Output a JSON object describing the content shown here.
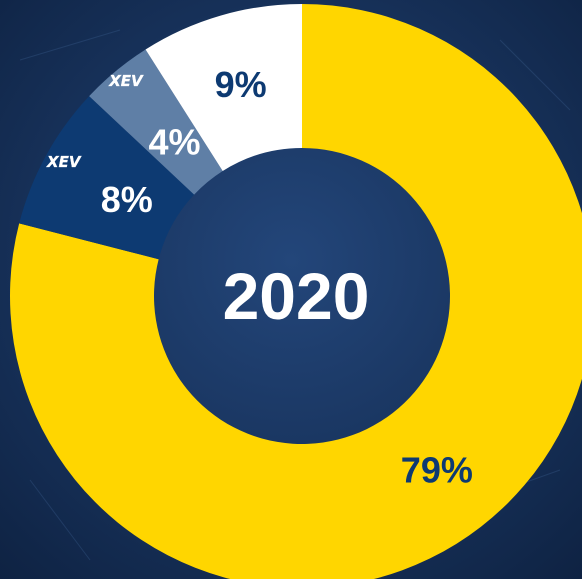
{
  "chart_data": {
    "type": "pie",
    "center_label": "2020",
    "slices": [
      {
        "value": 79,
        "label": "79%",
        "color": "#ffd600",
        "label_color": "#0d3a72",
        "logo": ""
      },
      {
        "value": 8,
        "label": "8%",
        "color": "#0d3a72",
        "label_color": "#ffffff",
        "logo": "XEV"
      },
      {
        "value": 4,
        "label": "4%",
        "color": "#5f7fa6",
        "label_color": "#ffffff",
        "logo": "XEV"
      },
      {
        "value": 9,
        "label": "9%",
        "color": "#ffffff",
        "label_color": "#0d3a72",
        "logo": ""
      }
    ]
  },
  "colors": {
    "background": "#142c4f",
    "center_text": "#ffffff"
  }
}
